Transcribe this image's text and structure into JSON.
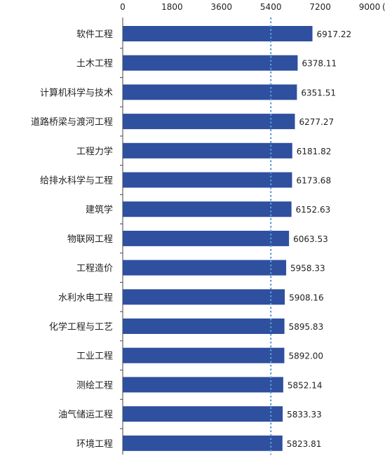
{
  "chart_data": {
    "type": "bar",
    "orientation": "horizontal",
    "categories": [
      "软件工程",
      "土木工程",
      "计算机科学与技术",
      "道路桥梁与渡河工程",
      "工程力学",
      "给排水科学与工程",
      "建筑学",
      "物联网工程",
      "工程造价",
      "水利水电工程",
      "化学工程与工艺",
      "工业工程",
      "测绘工程",
      "油气储运工程",
      "环境工程"
    ],
    "values": [
      6917.22,
      6378.11,
      6351.51,
      6277.27,
      6181.82,
      6173.68,
      6152.63,
      6063.53,
      5958.33,
      5908.16,
      5895.83,
      5892.0,
      5852.14,
      5833.33,
      5823.81
    ],
    "value_labels": [
      "6917.22",
      "6378.11",
      "6351.51",
      "6277.27",
      "6181.82",
      "6173.68",
      "6152.63",
      "6063.53",
      "5958.33",
      "5908.16",
      "5895.83",
      "5892.00",
      "5852.14",
      "5833.33",
      "5823.81"
    ],
    "x_ticks": [
      0,
      1800,
      3600,
      5400,
      7200,
      9000
    ],
    "x_tick_labels": [
      "0",
      "1800",
      "3600",
      "5400",
      "7200",
      "9000"
    ],
    "x_unit": "(元)",
    "xlim": [
      0,
      9000
    ],
    "reference_line": 5400,
    "title": "",
    "xlabel": "",
    "ylabel": "",
    "grid": false,
    "bar_color": "#2F4F9F",
    "reference_line_color": "#5B9BD5"
  }
}
